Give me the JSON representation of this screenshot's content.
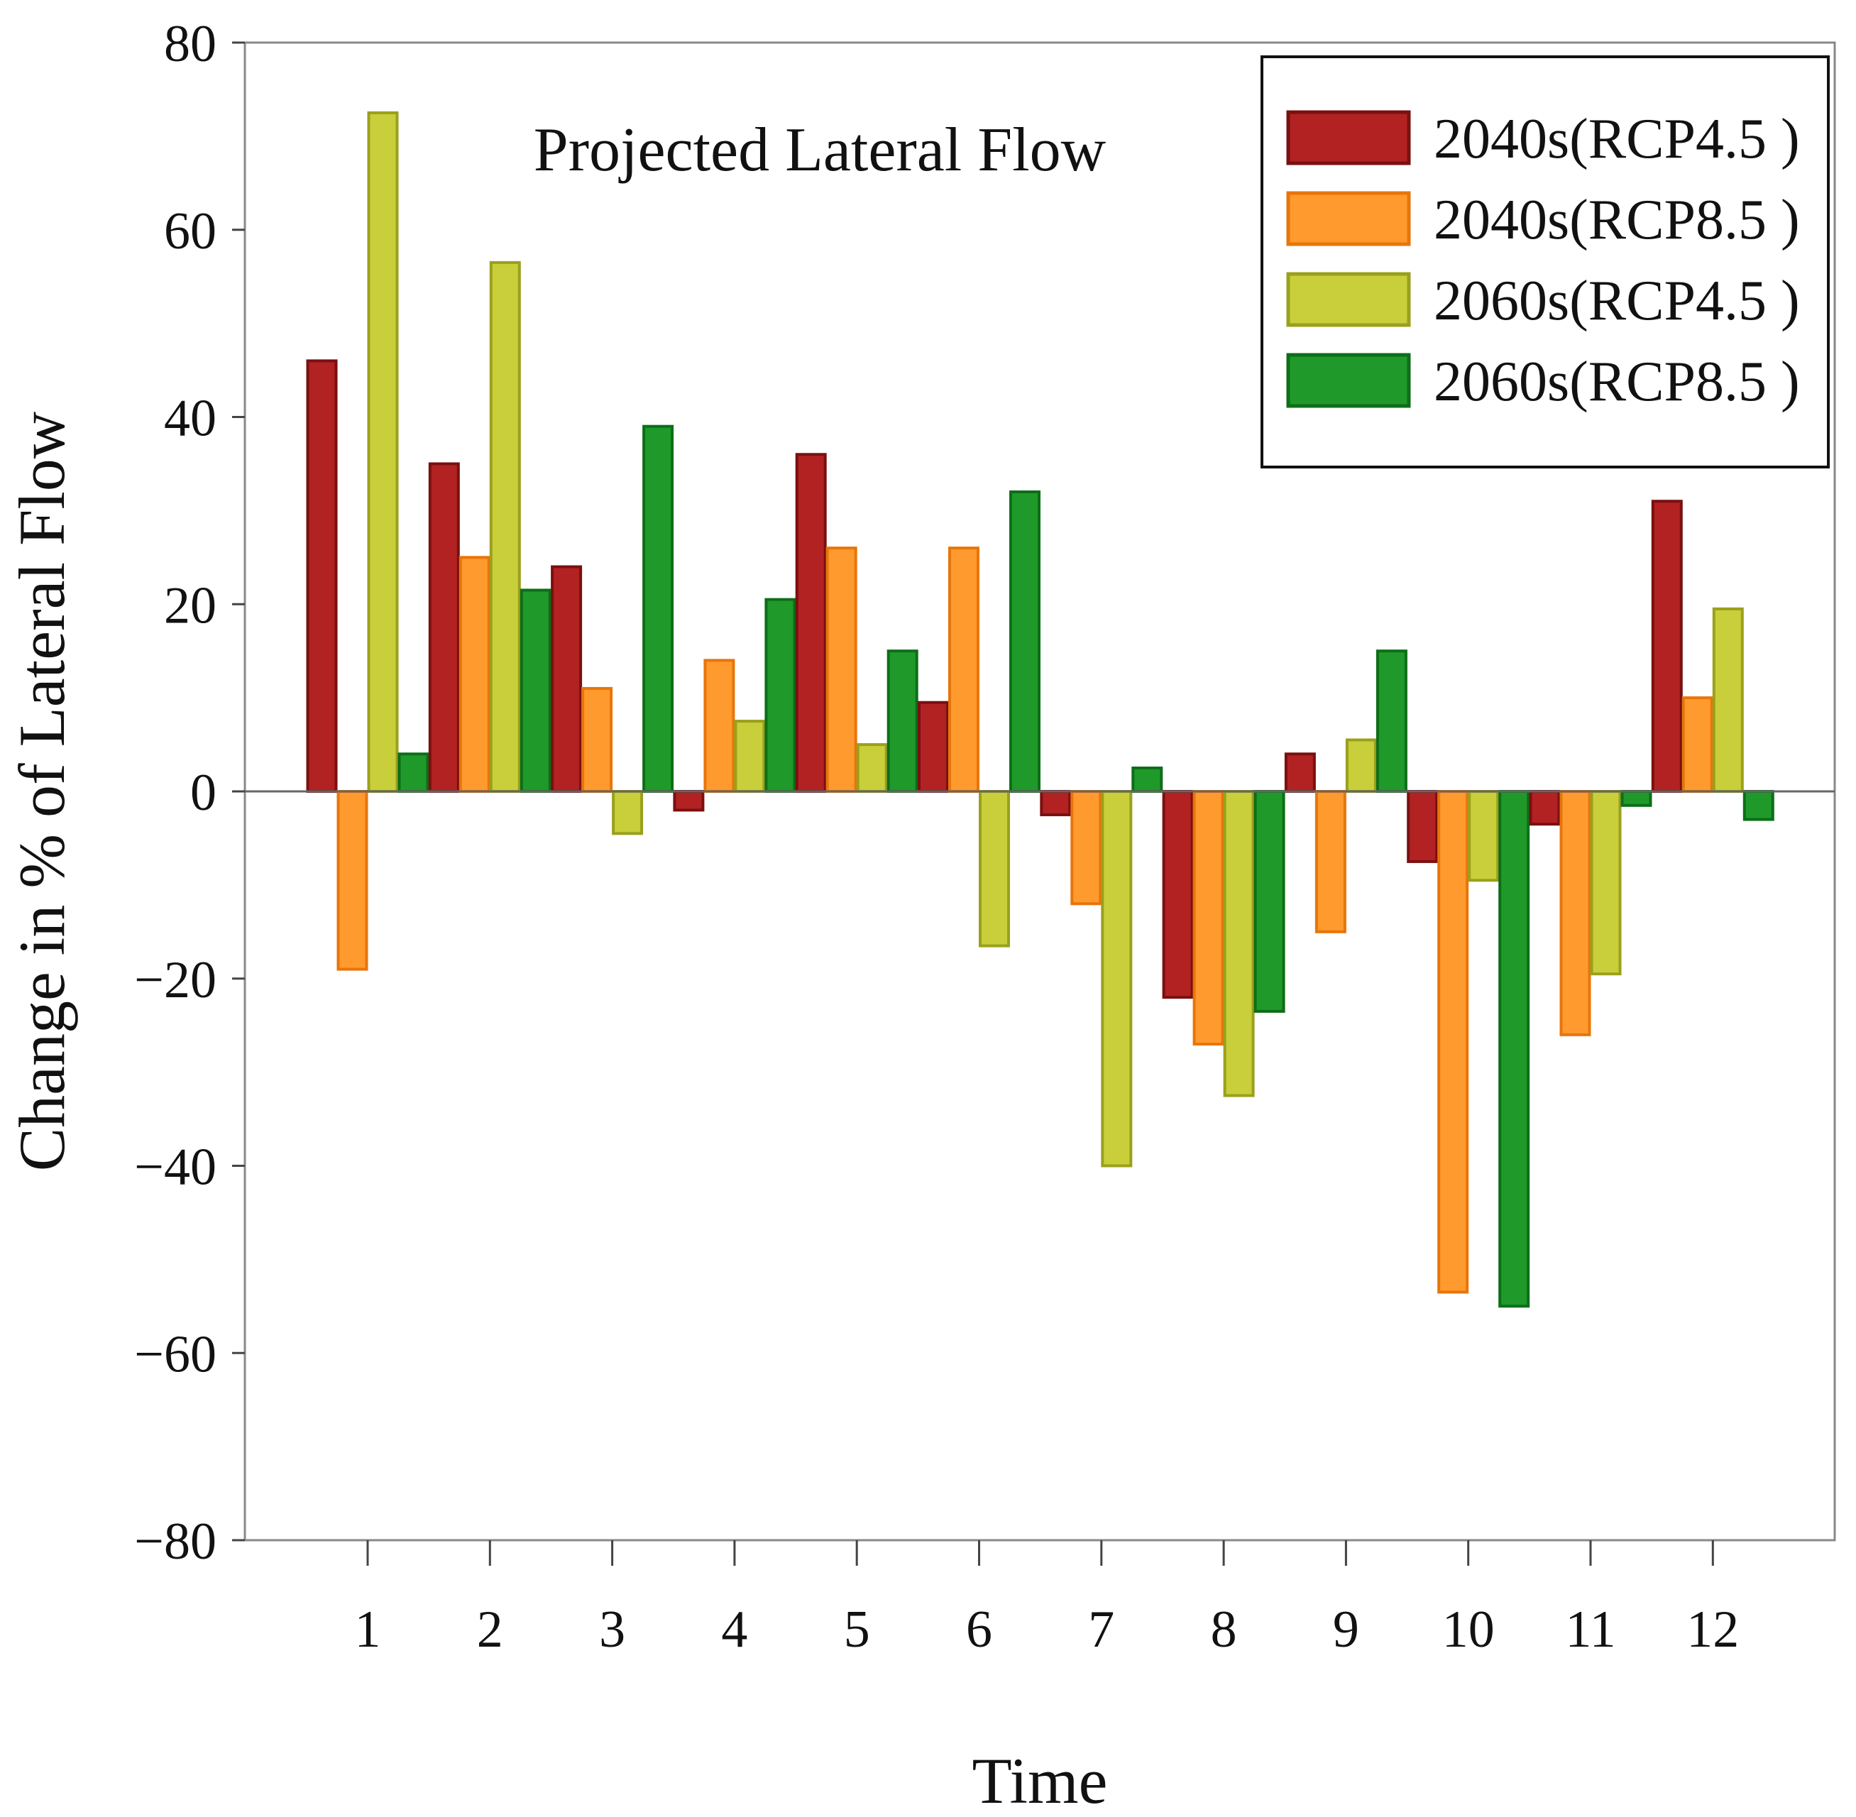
{
  "chart_data": {
    "type": "bar",
    "title": "Projected Lateral Flow",
    "xlabel": "Time",
    "ylabel": "Change in % of Lateral Flow",
    "ylim": [
      -80,
      80
    ],
    "yticks": [
      -80,
      -60,
      -40,
      -20,
      0,
      20,
      40,
      60,
      80
    ],
    "ytick_labels": [
      "−80",
      "−60",
      "−40",
      "−20",
      "0",
      "20",
      "40",
      "60",
      "80"
    ],
    "categories": [
      "1",
      "2",
      "3",
      "4",
      "5",
      "6",
      "7",
      "8",
      "9",
      "10",
      "11",
      "12"
    ],
    "legend_position": "top-right",
    "grid": false,
    "series": [
      {
        "name": "2040s(RCP4.5 )",
        "color": "#b22222",
        "edge": "#7a1010",
        "values": [
          46,
          35,
          24,
          -2,
          36,
          9.5,
          -2.5,
          -22,
          4,
          -7.5,
          -3.5,
          31
        ]
      },
      {
        "name": "2040s(RCP8.5 )",
        "color": "#ff9a2e",
        "edge": "#e8750a",
        "values": [
          -19,
          25,
          11,
          14,
          26,
          26,
          -12,
          -27,
          -15,
          -53.5,
          -26,
          10
        ]
      },
      {
        "name": "2060s(RCP4.5 )",
        "color": "#c8cf3a",
        "edge": "#9aa01c",
        "values": [
          72.5,
          56.5,
          -4.5,
          7.5,
          5,
          -16.5,
          -40,
          -32.5,
          5.5,
          -9.5,
          -19.5,
          19.5
        ]
      },
      {
        "name": "2060s(RCP8.5 )",
        "color": "#1f9a2a",
        "edge": "#0d6e18",
        "values": [
          4,
          21.5,
          39,
          20.5,
          15,
          32,
          2.5,
          -23.5,
          15,
          -55,
          -1.5,
          -3
        ]
      }
    ]
  }
}
